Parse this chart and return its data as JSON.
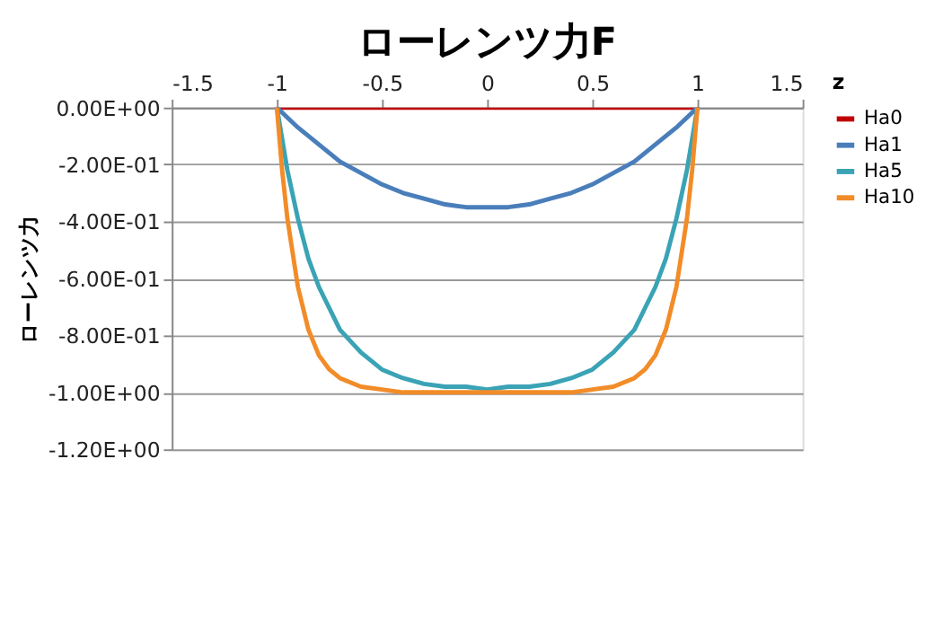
{
  "chart_data": {
    "type": "line",
    "title": "ローレンツ力F",
    "xlabel": "z",
    "ylabel": "ローレンツ力",
    "xlim": [
      -1.5,
      1.5
    ],
    "xticks": [
      -1.5,
      -1,
      -0.5,
      0,
      0.5,
      1,
      1.5
    ],
    "ylim": [
      -1.2,
      0
    ],
    "yticks": [
      {
        "value": 0,
        "label": "0.00E+00"
      },
      {
        "value": -0.2,
        "label": "-2.00E-01"
      },
      {
        "value": -0.4,
        "label": "-4.00E-01"
      },
      {
        "value": -0.6,
        "label": "-6.00E-01"
      },
      {
        "value": -0.8,
        "label": "-8.00E-01"
      },
      {
        "value": -1,
        "label": "-1.00E+00"
      },
      {
        "value": -1.2,
        "label": "-1.20E+00"
      }
    ],
    "grid": "y",
    "legend": "right",
    "marker": "none",
    "line_style": "solid",
    "series": [
      {
        "name": "Ha0",
        "color": "#c00000",
        "x": [
          -1,
          0,
          1
        ],
        "values": [
          0,
          0,
          0
        ]
      },
      {
        "name": "Ha1",
        "color": "#4a7ebb",
        "x": [
          -1,
          -0.9,
          -0.8,
          -0.7,
          -0.6,
          -0.5,
          -0.4,
          -0.3,
          -0.2,
          -0.1,
          0,
          0.1,
          0.2,
          0.3,
          0.4,
          0.5,
          0.6,
          0.7,
          0.8,
          0.9,
          1
        ],
        "values": [
          0,
          -0.07,
          -0.13,
          -0.19,
          -0.23,
          -0.27,
          -0.3,
          -0.32,
          -0.34,
          -0.35,
          -0.35,
          -0.35,
          -0.34,
          -0.32,
          -0.3,
          -0.27,
          -0.23,
          -0.19,
          -0.13,
          -0.07,
          0
        ]
      },
      {
        "name": "Ha5",
        "color": "#3aa3b5",
        "x": [
          -1,
          -0.95,
          -0.9,
          -0.85,
          -0.8,
          -0.7,
          -0.6,
          -0.5,
          -0.4,
          -0.3,
          -0.2,
          -0.1,
          0,
          0.1,
          0.2,
          0.3,
          0.4,
          0.5,
          0.6,
          0.7,
          0.8,
          0.85,
          0.9,
          0.95,
          1
        ],
        "values": [
          0,
          -0.22,
          -0.39,
          -0.53,
          -0.63,
          -0.78,
          -0.86,
          -0.92,
          -0.95,
          -0.97,
          -0.98,
          -0.98,
          -0.99,
          -0.98,
          -0.98,
          -0.97,
          -0.95,
          -0.92,
          -0.86,
          -0.78,
          -0.63,
          -0.53,
          -0.39,
          -0.22,
          0
        ]
      },
      {
        "name": "Ha10",
        "color": "#f28c28",
        "x": [
          -1,
          -0.975,
          -0.95,
          -0.9,
          -0.85,
          -0.8,
          -0.75,
          -0.7,
          -0.6,
          -0.5,
          -0.4,
          -0.3,
          0,
          0.3,
          0.4,
          0.5,
          0.6,
          0.7,
          0.75,
          0.8,
          0.85,
          0.9,
          0.95,
          0.975,
          1
        ],
        "values": [
          0,
          -0.22,
          -0.39,
          -0.63,
          -0.78,
          -0.87,
          -0.92,
          -0.95,
          -0.98,
          -0.99,
          -1,
          -1,
          -1,
          -1,
          -1,
          -0.99,
          -0.98,
          -0.95,
          -0.92,
          -0.87,
          -0.78,
          -0.63,
          -0.39,
          -0.22,
          0
        ]
      }
    ]
  }
}
